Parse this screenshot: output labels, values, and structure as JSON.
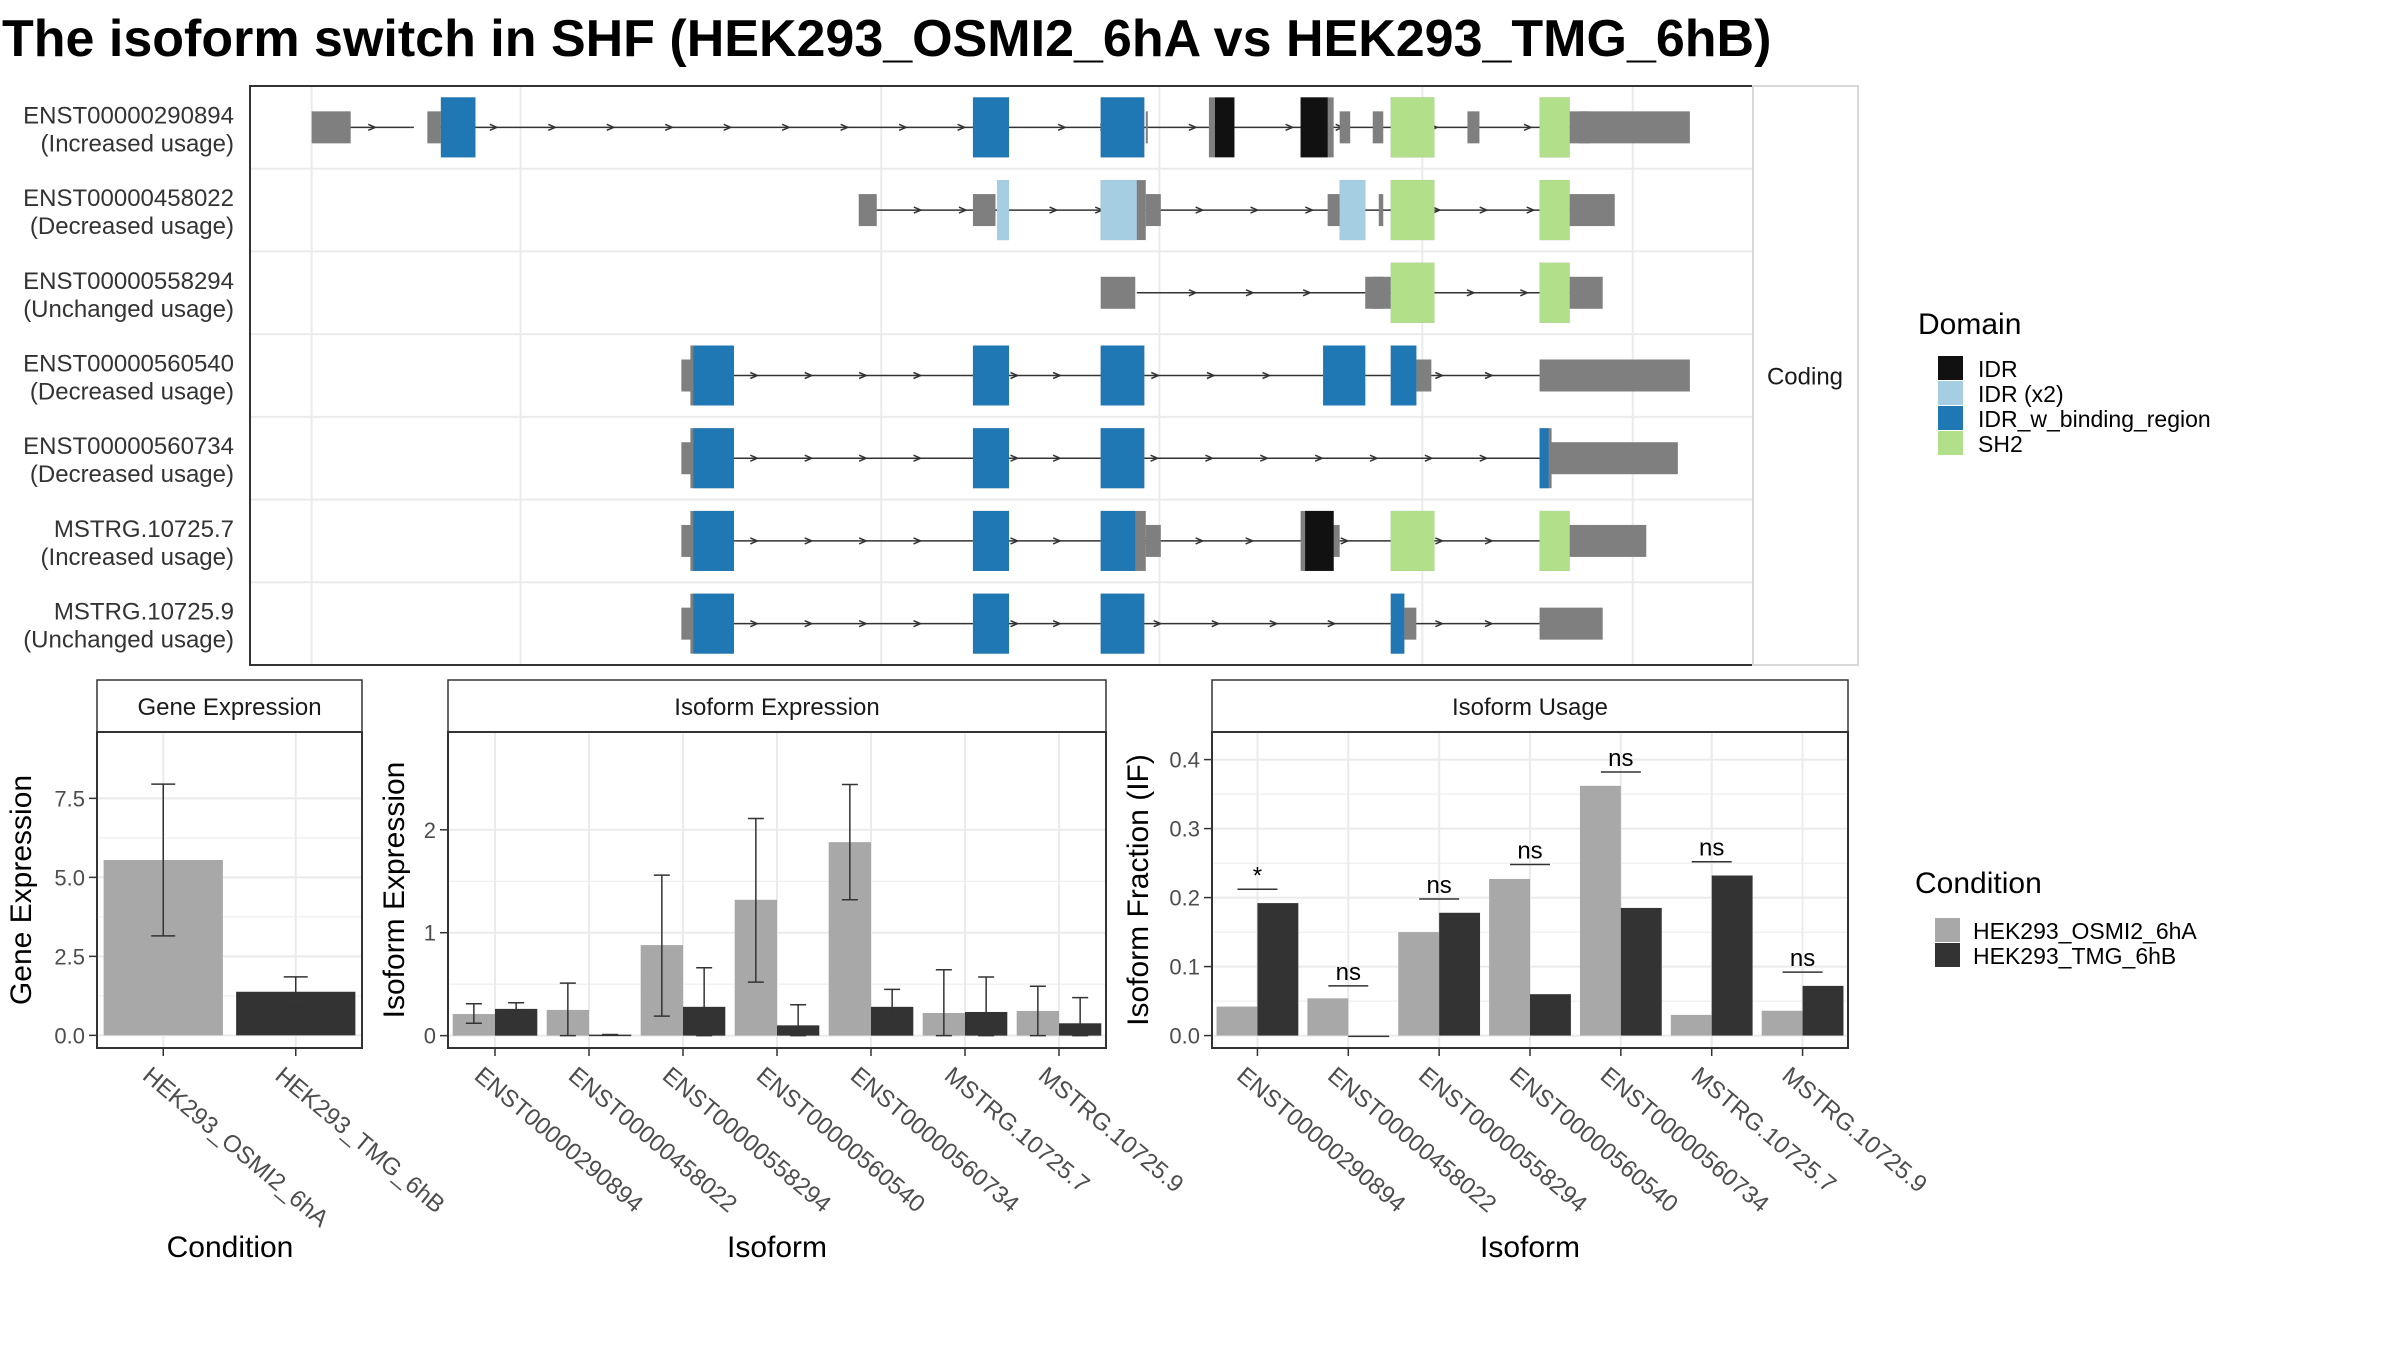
{
  "title": "The isoform switch in SHF (HEK293_OSMI2_6hA vs HEK293_TMG_6hB)",
  "structure": {
    "strip_label": "Coding",
    "transcripts": [
      {
        "id": "ENST00000290894",
        "usage": "(Increased usage)",
        "introns": [
          [
            0.057,
            0.107
          ],
          [
            0.107,
            0.109
          ],
          [
            0.124,
            0.513
          ],
          [
            0.513,
            0.597
          ],
          [
            0.597,
            0.659
          ],
          [
            0.659,
            0.759
          ],
          [
            0.759,
            0.818
          ],
          [
            0.818,
            0.884
          ]
        ],
        "utr": [
          [
            0.041,
            0.067
          ],
          [
            0.118,
            0.127
          ],
          [
            0.596,
            0.597
          ],
          [
            0.725,
            0.732
          ],
          [
            0.747,
            0.754
          ],
          [
            0.81,
            0.818
          ],
          [
            0.884,
            0.892
          ],
          [
            0.878,
            0.958
          ]
        ],
        "cds": [
          [
            0.127,
            0.15
          ],
          [
            0.481,
            0.505
          ],
          [
            0.566,
            0.595
          ],
          [
            0.638,
            0.642
          ],
          [
            0.699,
            0.721
          ],
          [
            0.759,
            0.788
          ],
          [
            0.858,
            0.878
          ]
        ],
        "domains": [
          [
            "IDR_w_binding_region",
            0.127,
            0.15
          ],
          [
            "IDR_w_binding_region",
            0.481,
            0.505
          ],
          [
            "IDR_w_binding_region",
            0.566,
            0.595
          ],
          [
            "IDR",
            0.642,
            0.655
          ],
          [
            "IDR",
            0.699,
            0.717
          ],
          [
            "SH2",
            0.759,
            0.788
          ],
          [
            "SH2",
            0.858,
            0.878
          ]
        ]
      },
      {
        "id": "ENST00000458022",
        "usage": "(Decreased usage)",
        "introns": [
          [
            0.415,
            0.505
          ],
          [
            0.505,
            0.596
          ],
          [
            0.596,
            0.742
          ],
          [
            0.742,
            0.759
          ],
          [
            0.759,
            0.884
          ]
        ],
        "utr": [
          [
            0.405,
            0.417
          ],
          [
            0.481,
            0.496
          ],
          [
            0.596,
            0.606
          ],
          [
            0.717,
            0.725
          ],
          [
            0.751,
            0.754
          ],
          [
            0.878,
            0.908
          ]
        ],
        "cds": [
          [
            0.497,
            0.505
          ],
          [
            0.566,
            0.596
          ],
          [
            0.725,
            0.742
          ],
          [
            0.759,
            0.788
          ],
          [
            0.858,
            0.878
          ]
        ],
        "domains": [
          [
            "IDR (x2)",
            0.497,
            0.505
          ],
          [
            "IDR (x2)",
            0.566,
            0.59
          ],
          [
            "IDR (x2)",
            0.725,
            0.742
          ],
          [
            "SH2",
            0.759,
            0.788
          ],
          [
            "SH2",
            0.858,
            0.878
          ]
        ]
      },
      {
        "id": "ENST00000558294",
        "usage": "(Unchanged usage)",
        "introns": [
          [
            0.59,
            0.742
          ],
          [
            0.742,
            0.884
          ]
        ],
        "utr": [
          [
            0.566,
            0.589
          ],
          [
            0.742,
            0.754
          ],
          [
            0.747,
            0.759
          ],
          [
            0.878,
            0.9
          ]
        ],
        "cds": [
          [
            0.759,
            0.788
          ],
          [
            0.858,
            0.878
          ]
        ],
        "domains": [
          [
            "SH2",
            0.759,
            0.788
          ],
          [
            "SH2",
            0.858,
            0.878
          ]
        ]
      },
      {
        "id": "ENST00000560540",
        "usage": "(Decreased usage)",
        "introns": [
          [
            0.3,
            0.481
          ],
          [
            0.481,
            0.566
          ],
          [
            0.566,
            0.714
          ],
          [
            0.714,
            0.759
          ],
          [
            0.759,
            0.858
          ]
        ],
        "utr": [
          [
            0.287,
            0.3
          ],
          [
            0.776,
            0.786
          ],
          [
            0.858,
            0.958
          ]
        ],
        "cds": [
          [
            0.293,
            0.322
          ],
          [
            0.481,
            0.505
          ],
          [
            0.566,
            0.595
          ],
          [
            0.714,
            0.742
          ],
          [
            0.759,
            0.776
          ]
        ],
        "domains": [
          [
            "IDR_w_binding_region",
            0.295,
            0.322
          ],
          [
            "IDR_w_binding_region",
            0.481,
            0.505
          ],
          [
            "IDR_w_binding_region",
            0.566,
            0.595
          ],
          [
            "IDR_w_binding_region",
            0.714,
            0.742
          ],
          [
            "IDR_w_binding_region",
            0.759,
            0.776
          ]
        ]
      },
      {
        "id": "ENST00000560734",
        "usage": "(Decreased usage)",
        "introns": [
          [
            0.3,
            0.481
          ],
          [
            0.481,
            0.566
          ],
          [
            0.566,
            0.858
          ]
        ],
        "utr": [
          [
            0.287,
            0.3
          ],
          [
            0.86,
            0.95
          ]
        ],
        "cds": [
          [
            0.293,
            0.322
          ],
          [
            0.481,
            0.505
          ],
          [
            0.566,
            0.595
          ],
          [
            0.858,
            0.866
          ]
        ],
        "domains": [
          [
            "IDR_w_binding_region",
            0.295,
            0.322
          ],
          [
            "IDR_w_binding_region",
            0.481,
            0.505
          ],
          [
            "IDR_w_binding_region",
            0.566,
            0.595
          ],
          [
            "IDR_w_binding_region",
            0.858,
            0.864
          ]
        ]
      },
      {
        "id": "MSTRG.10725.7",
        "usage": "(Increased usage)",
        "introns": [
          [
            0.3,
            0.481
          ],
          [
            0.481,
            0.566
          ],
          [
            0.566,
            0.699
          ],
          [
            0.699,
            0.759
          ],
          [
            0.759,
            0.858
          ]
        ],
        "utr": [
          [
            0.287,
            0.3
          ],
          [
            0.596,
            0.606
          ],
          [
            0.718,
            0.725
          ],
          [
            0.878,
            0.929
          ]
        ],
        "cds": [
          [
            0.293,
            0.322
          ],
          [
            0.481,
            0.505
          ],
          [
            0.566,
            0.596
          ],
          [
            0.699,
            0.721
          ],
          [
            0.759,
            0.788
          ],
          [
            0.858,
            0.878
          ]
        ],
        "domains": [
          [
            "IDR_w_binding_region",
            0.295,
            0.322
          ],
          [
            "IDR_w_binding_region",
            0.481,
            0.505
          ],
          [
            "IDR_w_binding_region",
            0.566,
            0.589
          ],
          [
            "IDR",
            0.702,
            0.721
          ],
          [
            "SH2",
            0.759,
            0.788
          ],
          [
            "SH2",
            0.858,
            0.878
          ]
        ]
      },
      {
        "id": "MSTRG.10725.9",
        "usage": "(Unchanged usage)",
        "introns": [
          [
            0.3,
            0.481
          ],
          [
            0.481,
            0.566
          ],
          [
            0.566,
            0.759
          ],
          [
            0.759,
            0.858
          ]
        ],
        "utr": [
          [
            0.287,
            0.3
          ],
          [
            0.768,
            0.776
          ],
          [
            0.858,
            0.9
          ]
        ],
        "cds": [
          [
            0.293,
            0.322
          ],
          [
            0.481,
            0.505
          ],
          [
            0.566,
            0.595
          ],
          [
            0.759,
            0.768
          ]
        ],
        "domains": [
          [
            "IDR_w_binding_region",
            0.295,
            0.322
          ],
          [
            "IDR_w_binding_region",
            0.481,
            0.505
          ],
          [
            "IDR_w_binding_region",
            0.566,
            0.595
          ],
          [
            "IDR_w_binding_region",
            0.759,
            0.768
          ]
        ]
      }
    ]
  },
  "legends": {
    "domain": {
      "title": "Domain",
      "items": [
        {
          "label": "IDR",
          "color": "#111111"
        },
        {
          "label": "IDR (x2)",
          "color": "#a6cee3"
        },
        {
          "label": "IDR_w_binding_region",
          "color": "#1f78b4"
        },
        {
          "label": "SH2",
          "color": "#b2df8a"
        }
      ]
    },
    "condition": {
      "title": "Condition",
      "items": [
        {
          "label": "HEK293_OSMI2_6hA",
          "color": "#a8a8a8"
        },
        {
          "label": "HEK293_TMG_6hB",
          "color": "#333333"
        }
      ]
    }
  },
  "colors": {
    "utr": "#7f7f7f",
    "intron": "#333333",
    "frame": "#333333",
    "strip": "#d9d9d9",
    "grid": "#ebebeb"
  },
  "chart_data": [
    {
      "type": "bar",
      "title": "Gene Expression",
      "xlabel": "Condition",
      "ylabel": "Gene Expression",
      "categories": [
        "HEK293_OSMI2_6hA",
        "HEK293_TMG_6hB"
      ],
      "values": [
        5.55,
        1.38
      ],
      "error_low": [
        3.15,
        0.9
      ],
      "error_high": [
        7.95,
        1.85
      ],
      "ylim": [
        -0.4,
        9.6
      ],
      "yticks": [
        "0.0",
        "2.5",
        "5.0",
        "7.5"
      ],
      "ytick_values": [
        0,
        2.5,
        5,
        7.5
      ]
    },
    {
      "type": "bar",
      "title": "Isoform Expression",
      "xlabel": "Isoform",
      "ylabel": "Isoform Expression",
      "categories": [
        "ENST00000290894",
        "ENST00000458022",
        "ENST00000558294",
        "ENST00000560540",
        "ENST00000560734",
        "MSTRG.10725.7",
        "MSTRG.10725.9"
      ],
      "series": [
        {
          "name": "HEK293_OSMI2_6hA",
          "values": [
            0.21,
            0.25,
            0.88,
            1.32,
            1.88,
            0.22,
            0.24
          ],
          "error_low": [
            0.12,
            0.0,
            0.19,
            0.52,
            1.32,
            0.0,
            0.0
          ],
          "error_high": [
            0.31,
            0.51,
            1.56,
            2.11,
            2.44,
            0.64,
            0.48
          ]
        },
        {
          "name": "HEK293_TMG_6hB",
          "values": [
            0.26,
            0.01,
            0.28,
            0.1,
            0.28,
            0.23,
            0.12
          ],
          "error_low": [
            0.21,
            0.01,
            0.0,
            0.0,
            0.12,
            0.0,
            0.0
          ],
          "error_high": [
            0.32,
            0.01,
            0.66,
            0.3,
            0.45,
            0.57,
            0.37
          ]
        }
      ],
      "ylim": [
        -0.12,
        2.95
      ],
      "yticks": [
        "0",
        "1",
        "2"
      ],
      "ytick_values": [
        0,
        1,
        2
      ]
    },
    {
      "type": "bar",
      "title": "Isoform Usage",
      "xlabel": "Isoform",
      "ylabel": "Isoform Fraction (IF)",
      "categories": [
        "ENST00000290894",
        "ENST00000458022",
        "ENST00000558294",
        "ENST00000560540",
        "ENST00000560734",
        "MSTRG.10725.7",
        "MSTRG.10725.9"
      ],
      "series": [
        {
          "name": "HEK293_OSMI2_6hA",
          "values": [
            0.042,
            0.054,
            0.15,
            0.227,
            0.362,
            0.03,
            0.036
          ]
        },
        {
          "name": "HEK293_TMG_6hB",
          "values": [
            0.192,
            0.0,
            0.178,
            0.06,
            0.185,
            0.232,
            0.072
          ]
        }
      ],
      "significance": [
        "*",
        "ns",
        "ns",
        "ns",
        "ns",
        "ns",
        "ns"
      ],
      "significance_y": [
        0.212,
        0.072,
        0.198,
        0.248,
        0.382,
        0.252,
        0.092
      ],
      "ylim": [
        -0.018,
        0.44
      ],
      "yticks": [
        "0.0",
        "0.1",
        "0.2",
        "0.3",
        "0.4"
      ],
      "ytick_values": [
        0,
        0.1,
        0.2,
        0.3,
        0.4
      ]
    }
  ]
}
